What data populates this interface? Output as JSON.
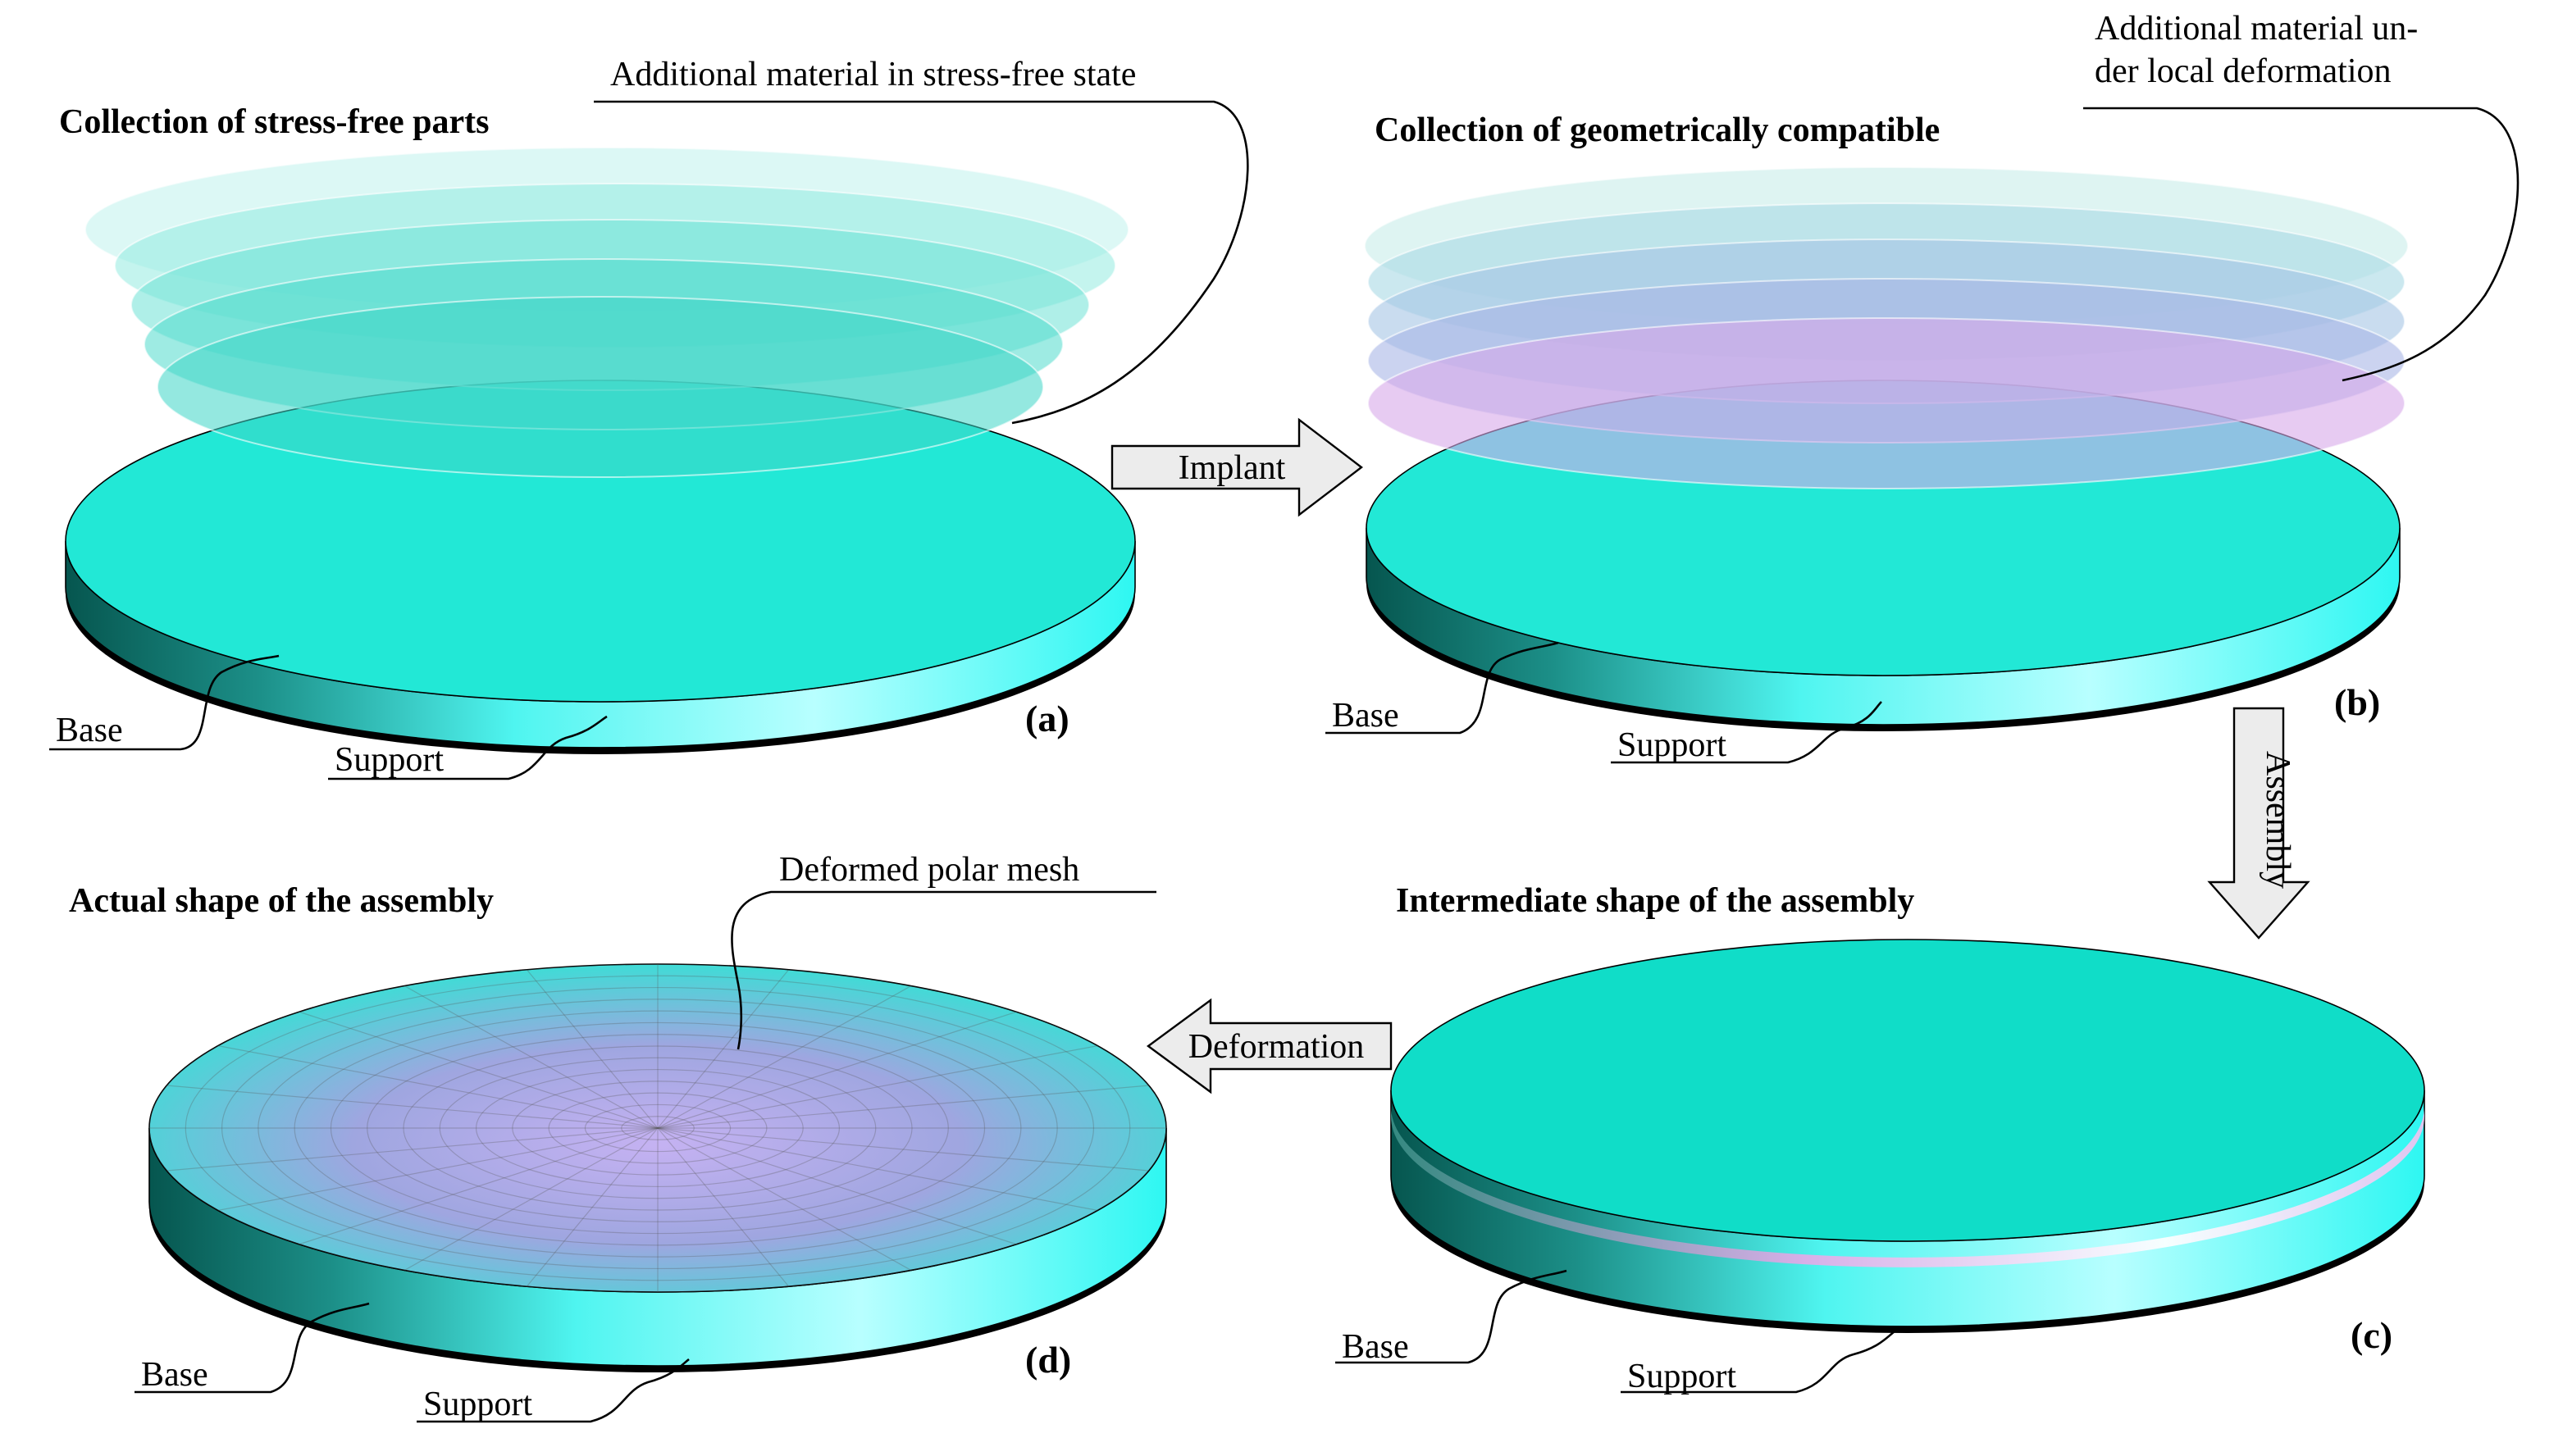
{
  "panel_a": {
    "title": "Collection of stress-free parts",
    "tag": "(a)",
    "material_label": "Additional material in stress-free state",
    "base_label": "Base",
    "support_label": "Support"
  },
  "panel_b": {
    "title": "Collection of geometrically compatible",
    "tag": "(b)",
    "material_label": [
      "Additional material un-",
      "der local deformation"
    ],
    "base_label": "Base",
    "support_label": "Support"
  },
  "panel_c": {
    "title": "Intermediate shape of the assembly",
    "tag": "(c)",
    "base_label": "Base",
    "support_label": "Support"
  },
  "panel_d": {
    "title": "Actual shape of the assembly",
    "tag": "(d)",
    "mesh_label": "Deformed polar mesh",
    "base_label": "Base",
    "support_label": "Support"
  },
  "arrows": {
    "implant": "Implant",
    "assembly": "Assembly",
    "deformation": "Deformation"
  }
}
